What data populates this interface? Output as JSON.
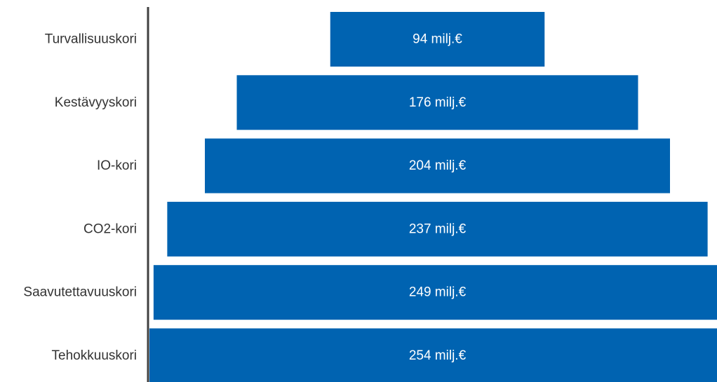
{
  "chart_data": {
    "type": "bar",
    "orientation": "horizontal",
    "layout": "centered-funnel",
    "title": "",
    "xlabel": "",
    "ylabel": "",
    "unit": "milj.€",
    "bar_color": "#0063B1",
    "axis_color": "#404040",
    "categories": [
      "Turvallisuuskori",
      "Kestävyyskori",
      "IO-kori",
      "CO2-kori",
      "Saavutettavuuskori",
      "Tehokkuuskori"
    ],
    "values": [
      94,
      176,
      204,
      237,
      249,
      254
    ],
    "value_labels": [
      "94 milj.€",
      "176 milj.€",
      "204 milj.€",
      "237 milj.€",
      "249 milj.€",
      "254 milj.€"
    ],
    "grid": false,
    "legend": "none"
  }
}
